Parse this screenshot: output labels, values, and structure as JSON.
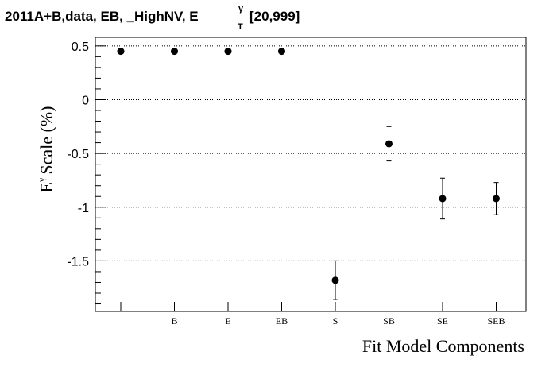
{
  "title": {
    "prefix": "2011A+B,data, EB, _HighNV, E",
    "superscript": "γ",
    "subscript": "T",
    "suffix": "[20,999]"
  },
  "chart_data": {
    "type": "scatter",
    "xlabel": "Fit Model Components",
    "ylabel": {
      "prefix": "E",
      "superscript": "γ",
      "suffix": "Scale (%)"
    },
    "categories": [
      "",
      "B",
      "E",
      "EB",
      "S",
      "SB",
      "SE",
      "SEB"
    ],
    "series": [
      {
        "values": [
          0.45,
          0.45,
          0.45,
          0.45,
          -1.68,
          -0.41,
          -0.92,
          -0.92
        ],
        "errors": [
          0.0,
          0.0,
          0.0,
          0.0,
          0.18,
          0.16,
          0.19,
          0.15
        ]
      }
    ],
    "ylim": [
      -1.97,
      0.58
    ],
    "yticks": [
      0.5,
      0,
      -0.5,
      -1,
      -1.5
    ],
    "ytick_labels": [
      "0.5",
      "0",
      "-0.5",
      "-1",
      "-1.5"
    ],
    "grid": "horizontal-dotted",
    "marker_color": "#000000"
  }
}
